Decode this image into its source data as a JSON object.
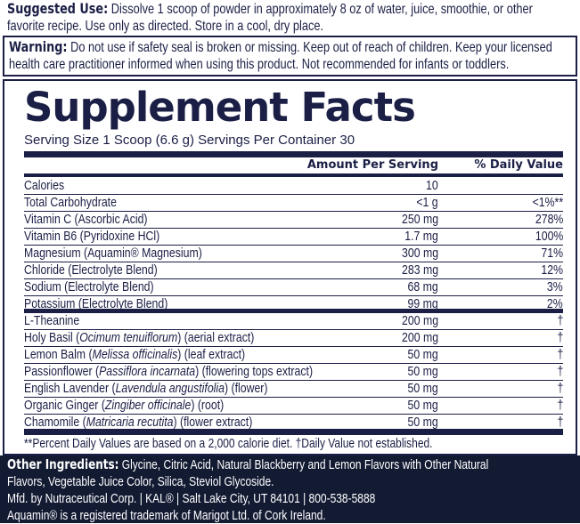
{
  "suggested_use": {
    "label": "Suggested Use:",
    "line1": "Dissolve 1 scoop of powder in approximately 8 oz of water, juice, smoothie, or other",
    "line2": "favorite recipe. Use only as directed. Store in a cool, dry place."
  },
  "warning": {
    "label": "Warning:",
    "line1": "Do not use if safety seal is broken or missing. Keep out of reach of children. Keep your licensed",
    "line2": "health care practitioner informed when using this product. Not recommended for infants or toddlers."
  },
  "facts": {
    "title": "Supplement Facts",
    "serving": "Serving Size 1 Scoop (6.6 g)  Servings Per Container 30",
    "col_amount": "Amount Per Serving",
    "col_dv": "% Daily Value",
    "rows": [
      {
        "name": "Calories",
        "amount": "10",
        "dv": ""
      },
      {
        "name": "Total Carbohydrate",
        "amount": "<1 g",
        "dv": "<1%**"
      },
      {
        "name": "Vitamin C (Ascorbic Acid)",
        "amount": "250 mg",
        "dv": "278%"
      },
      {
        "name": "Vitamin B6 (Pyridoxine HCl)",
        "amount": "1.7 mg",
        "dv": "100%"
      },
      {
        "name": "Magnesium (Aquamin® Magnesium)",
        "amount": "300 mg",
        "dv": "71%"
      },
      {
        "name": "Chloride (Electrolyte Blend)",
        "amount": "283 mg",
        "dv": "12%"
      },
      {
        "name": "Sodium (Electrolyte Blend)",
        "amount": "68 mg",
        "dv": "3%"
      },
      {
        "name": "Potassium (Electrolyte Blend)",
        "amount": "99 mg",
        "dv": "2%"
      }
    ],
    "herbal_rows": [
      {
        "name": "L-Theanine",
        "latin": "",
        "part": "",
        "amount": "200 mg",
        "dv": "†"
      },
      {
        "name": "Holy Basil (",
        "latin": "Ocimum tenuiflorum",
        "part": ") (aerial extract)",
        "amount": "200 mg",
        "dv": "†"
      },
      {
        "name": "Lemon Balm (",
        "latin": "Melissa officinalis",
        "part": ") (leaf extract)",
        "amount": "50 mg",
        "dv": "†"
      },
      {
        "name": "Passionflower (",
        "latin": "Passiflora incarnata",
        "part": ") (flowering tops extract)",
        "amount": "50 mg",
        "dv": "†"
      },
      {
        "name": "English Lavender (",
        "latin": "Lavendula angustifolia",
        "part": ") (flower)",
        "amount": "50 mg",
        "dv": "†"
      },
      {
        "name": "Organic Ginger (",
        "latin": "Zingiber officinale",
        "part": ") (root)",
        "amount": "50 mg",
        "dv": "†"
      },
      {
        "name": "Chamomile (",
        "latin": "Matricaria recutita",
        "part": ") (flower extract)",
        "amount": "50 mg",
        "dv": "†"
      }
    ],
    "footnote": "**Percent Daily Values are based on a 2,000 calorie diet.  †Daily Value not established."
  },
  "other": {
    "label": "Other Ingredients:",
    "line1": "Glycine, Citric Acid, Natural Blackberry and Lemon Flavors with Other Natural",
    "line2": "Flavors, Vegetable Juice Color, Silica, Steviol Glycoside.",
    "mfd": "Mfd. by Nutraceutical Corp. | KAL® | Salt Lake City, UT 84101 | 800-538-5888",
    "trademark": "Aquamin® is a registered trademark of Marigot Ltd. of Cork Ireland."
  }
}
